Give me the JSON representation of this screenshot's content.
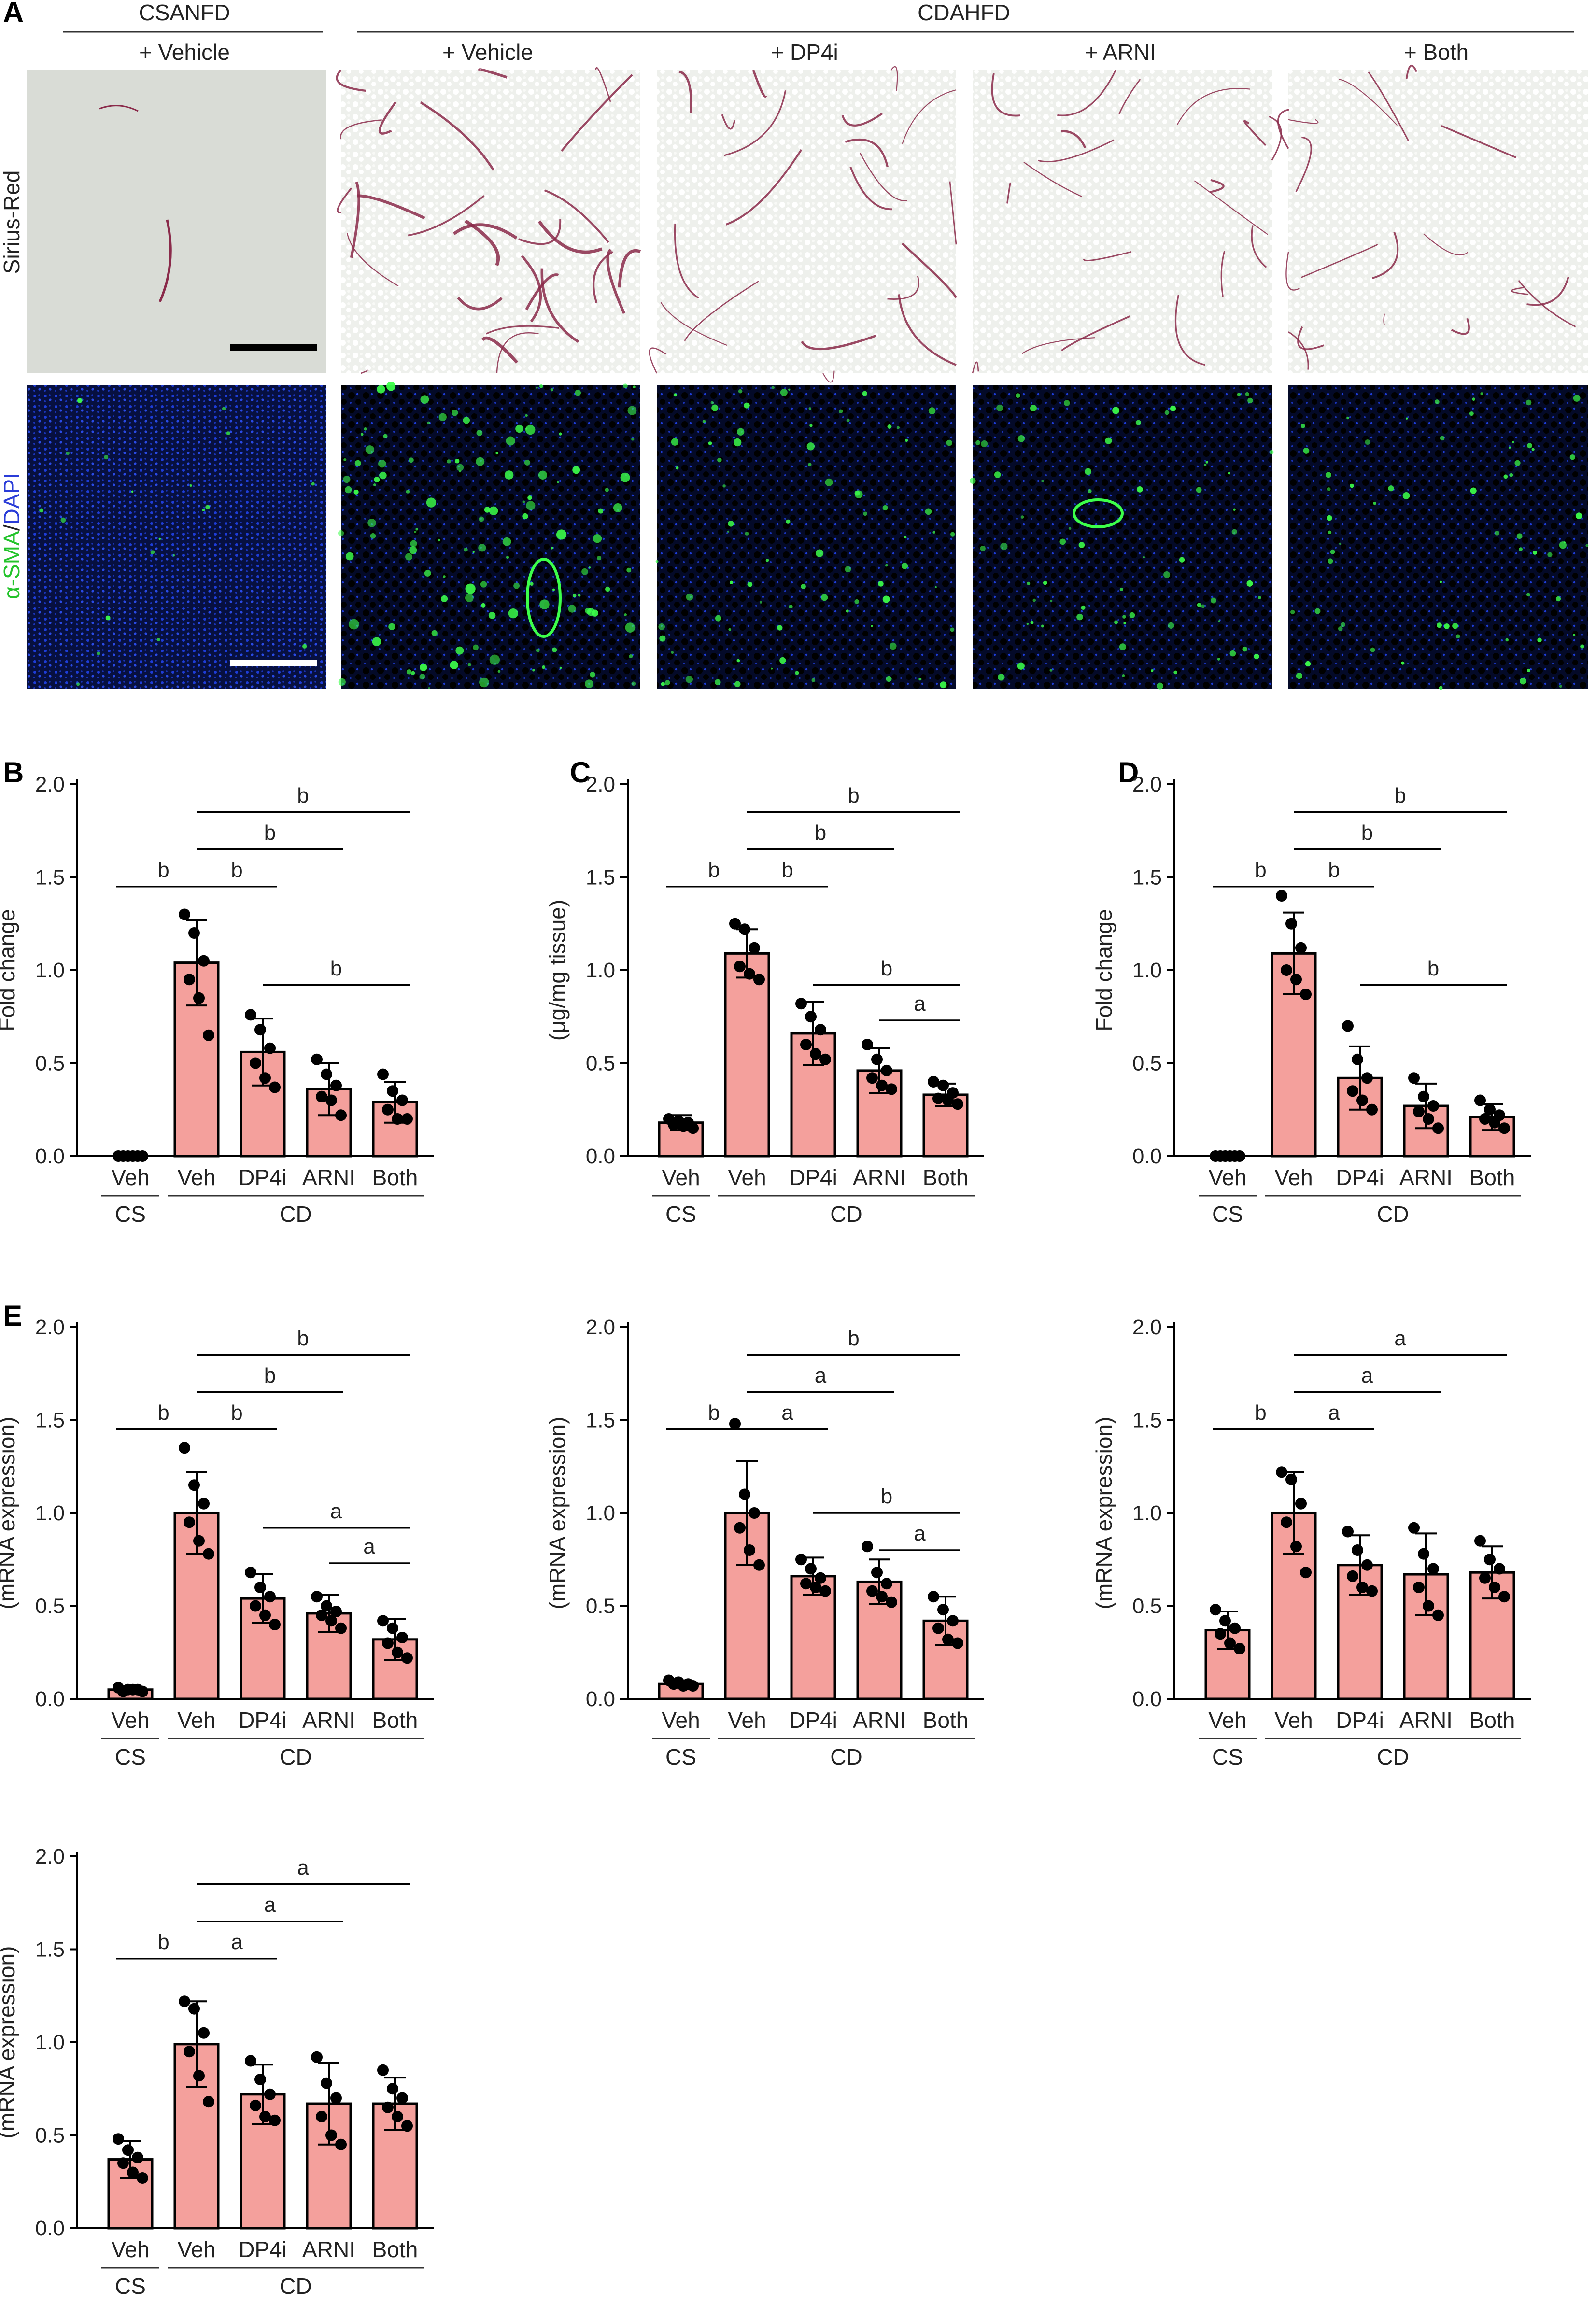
{
  "panel_a": {
    "letter": "A",
    "group_labels": [
      "CSANFD",
      "CDAHFD"
    ],
    "column_labels": [
      "+ Vehicle",
      "+ Vehicle",
      "+ DP4i",
      "+ ARNI",
      "+ Both"
    ],
    "row_labels": [
      "Sirius-Red",
      "α-SMA/DAPI"
    ],
    "row_label_parts": {
      "sma": "α-SMA",
      "sep": "/",
      "dapi": "DAPI"
    },
    "colors": {
      "sirius_bg": "#d9dcd6",
      "sirius_stain": "#8a2a4a",
      "if_bg": "#0b1a5a",
      "if_green": "#3cff4a",
      "scale_white": "#ffffff",
      "scale_black": "#000000"
    }
  },
  "colors": {
    "bar_fill": "#f4a09c",
    "bar_stroke": "#000000",
    "point": "#000000"
  },
  "chart_data": [
    {
      "type": "bar",
      "letter": "B",
      "title": "",
      "xlabel": "",
      "ylabel": "Fold change",
      "ylim": [
        0,
        2.0
      ],
      "yticks": [
        "0.0",
        "0.5",
        "1.0",
        "1.5",
        "2.0"
      ],
      "categories": [
        "Veh",
        "Veh",
        "DP4i",
        "ARNI",
        "Both"
      ],
      "groups": [
        {
          "label": "CS",
          "span": [
            0,
            0
          ]
        },
        {
          "label": "CD",
          "span": [
            1,
            4
          ]
        }
      ],
      "values": [
        0.0,
        1.04,
        0.56,
        0.36,
        0.29
      ],
      "errors": [
        0.0,
        0.23,
        0.18,
        0.14,
        0.11
      ],
      "points": [
        [
          0,
          0,
          0,
          0,
          0,
          0
        ],
        [
          1.3,
          1.2,
          1.05,
          0.95,
          0.85,
          0.65
        ],
        [
          0.76,
          0.68,
          0.58,
          0.5,
          0.42,
          0.37
        ],
        [
          0.52,
          0.44,
          0.38,
          0.32,
          0.3,
          0.22
        ],
        [
          0.44,
          0.35,
          0.3,
          0.25,
          0.2,
          0.2
        ]
      ],
      "annotations": [
        {
          "from": 0,
          "to": 1,
          "level": 1.45,
          "text": "b"
        },
        {
          "from": 1,
          "to": 2,
          "level": 1.45,
          "text": "b"
        },
        {
          "from": 1,
          "to": 3,
          "level": 1.65,
          "text": "b"
        },
        {
          "from": 1,
          "to": 4,
          "level": 1.85,
          "text": "b"
        },
        {
          "from": 2,
          "to": 4,
          "level": 0.92,
          "text": "b"
        }
      ]
    },
    {
      "type": "bar",
      "letter": "C",
      "title": "",
      "xlabel": "",
      "ylabel": "(μg/mg tissue)",
      "ylim": [
        0,
        2.0
      ],
      "yticks": [
        "0.0",
        "0.5",
        "1.0",
        "1.5",
        "2.0"
      ],
      "categories": [
        "Veh",
        "Veh",
        "DP4i",
        "ARNI",
        "Both"
      ],
      "groups": [
        {
          "label": "CS",
          "span": [
            0,
            0
          ]
        },
        {
          "label": "CD",
          "span": [
            1,
            4
          ]
        }
      ],
      "values": [
        0.18,
        1.09,
        0.66,
        0.46,
        0.33
      ],
      "errors": [
        0.04,
        0.13,
        0.17,
        0.12,
        0.06
      ],
      "points": [
        [
          0.2,
          0.19,
          0.18,
          0.17,
          0.16,
          0.15
        ],
        [
          1.25,
          1.22,
          1.12,
          1.02,
          0.98,
          0.95
        ],
        [
          0.82,
          0.75,
          0.68,
          0.6,
          0.55,
          0.52
        ],
        [
          0.6,
          0.52,
          0.46,
          0.42,
          0.38,
          0.36
        ],
        [
          0.4,
          0.38,
          0.34,
          0.31,
          0.3,
          0.28
        ]
      ],
      "annotations": [
        {
          "from": 0,
          "to": 1,
          "level": 1.45,
          "text": "b"
        },
        {
          "from": 1,
          "to": 2,
          "level": 1.45,
          "text": "b"
        },
        {
          "from": 1,
          "to": 3,
          "level": 1.65,
          "text": "b"
        },
        {
          "from": 1,
          "to": 4,
          "level": 1.85,
          "text": "b"
        },
        {
          "from": 2,
          "to": 4,
          "level": 0.92,
          "text": "b"
        },
        {
          "from": 3,
          "to": 4,
          "level": 0.73,
          "text": "a"
        }
      ]
    },
    {
      "type": "bar",
      "letter": "D",
      "title": "",
      "xlabel": "",
      "ylabel": "Fold change",
      "ylim": [
        0,
        2.0
      ],
      "yticks": [
        "0.0",
        "0.5",
        "1.0",
        "1.5",
        "2.0"
      ],
      "categories": [
        "Veh",
        "Veh",
        "DP4i",
        "ARNI",
        "Both"
      ],
      "groups": [
        {
          "label": "CS",
          "span": [
            0,
            0
          ]
        },
        {
          "label": "CD",
          "span": [
            1,
            4
          ]
        }
      ],
      "values": [
        0.0,
        1.09,
        0.42,
        0.27,
        0.21
      ],
      "errors": [
        0.0,
        0.22,
        0.17,
        0.12,
        0.07
      ],
      "points": [
        [
          0,
          0,
          0,
          0,
          0,
          0
        ],
        [
          1.4,
          1.25,
          1.12,
          1.0,
          0.95,
          0.87
        ],
        [
          0.7,
          0.52,
          0.42,
          0.35,
          0.3,
          0.25
        ],
        [
          0.42,
          0.32,
          0.27,
          0.24,
          0.2,
          0.15
        ],
        [
          0.3,
          0.25,
          0.22,
          0.2,
          0.18,
          0.15
        ]
      ],
      "annotations": [
        {
          "from": 0,
          "to": 1,
          "level": 1.45,
          "text": "b"
        },
        {
          "from": 1,
          "to": 2,
          "level": 1.45,
          "text": "b"
        },
        {
          "from": 1,
          "to": 3,
          "level": 1.65,
          "text": "b"
        },
        {
          "from": 1,
          "to": 4,
          "level": 1.85,
          "text": "b"
        },
        {
          "from": 2,
          "to": 4,
          "level": 0.92,
          "text": "b"
        }
      ]
    },
    {
      "type": "bar",
      "letter": "E",
      "title": "",
      "xlabel": "",
      "ylabel": "(mRNA expression)",
      "ylim": [
        0,
        2.0
      ],
      "yticks": [
        "0.0",
        "0.5",
        "1.0",
        "1.5",
        "2.0"
      ],
      "categories": [
        "Veh",
        "Veh",
        "DP4i",
        "ARNI",
        "Both"
      ],
      "groups": [
        {
          "label": "CS",
          "span": [
            0,
            0
          ]
        },
        {
          "label": "CD",
          "span": [
            1,
            4
          ]
        }
      ],
      "values": [
        0.05,
        1.0,
        0.54,
        0.46,
        0.32
      ],
      "errors": [
        0.01,
        0.22,
        0.13,
        0.1,
        0.11
      ],
      "points": [
        [
          0.06,
          0.05,
          0.05,
          0.04,
          0.05,
          0.04
        ],
        [
          1.35,
          1.15,
          1.05,
          0.95,
          0.85,
          0.78
        ],
        [
          0.68,
          0.6,
          0.55,
          0.5,
          0.45,
          0.4
        ],
        [
          0.55,
          0.5,
          0.47,
          0.45,
          0.42,
          0.38
        ],
        [
          0.42,
          0.38,
          0.33,
          0.3,
          0.25,
          0.22
        ]
      ],
      "annotations": [
        {
          "from": 0,
          "to": 1,
          "level": 1.45,
          "text": "b"
        },
        {
          "from": 1,
          "to": 2,
          "level": 1.45,
          "text": "b"
        },
        {
          "from": 1,
          "to": 3,
          "level": 1.65,
          "text": "b"
        },
        {
          "from": 1,
          "to": 4,
          "level": 1.85,
          "text": "b"
        },
        {
          "from": 2,
          "to": 4,
          "level": 0.92,
          "text": "a"
        },
        {
          "from": 3,
          "to": 4,
          "level": 0.73,
          "text": "a"
        }
      ]
    },
    {
      "type": "bar",
      "letter": "",
      "title": "",
      "xlabel": "",
      "ylabel": "(mRNA expression)",
      "ylim": [
        0,
        2.0
      ],
      "yticks": [
        "0.0",
        "0.5",
        "1.0",
        "1.5",
        "2.0"
      ],
      "categories": [
        "Veh",
        "Veh",
        "DP4i",
        "ARNI",
        "Both"
      ],
      "groups": [
        {
          "label": "CS",
          "span": [
            0,
            0
          ]
        },
        {
          "label": "CD",
          "span": [
            1,
            4
          ]
        }
      ],
      "values": [
        0.08,
        1.0,
        0.66,
        0.63,
        0.42
      ],
      "errors": [
        0.02,
        0.28,
        0.1,
        0.12,
        0.13
      ],
      "points": [
        [
          0.1,
          0.09,
          0.08,
          0.08,
          0.07,
          0.07
        ],
        [
          1.48,
          1.1,
          1.0,
          0.92,
          0.8,
          0.72
        ],
        [
          0.75,
          0.7,
          0.65,
          0.62,
          0.6,
          0.58
        ],
        [
          0.82,
          0.68,
          0.62,
          0.58,
          0.55,
          0.52
        ],
        [
          0.55,
          0.48,
          0.42,
          0.38,
          0.32,
          0.3
        ]
      ],
      "annotations": [
        {
          "from": 0,
          "to": 1,
          "level": 1.45,
          "text": "b"
        },
        {
          "from": 1,
          "to": 2,
          "level": 1.45,
          "text": "a"
        },
        {
          "from": 1,
          "to": 3,
          "level": 1.65,
          "text": "a"
        },
        {
          "from": 1,
          "to": 4,
          "level": 1.85,
          "text": "b"
        },
        {
          "from": 2,
          "to": 4,
          "level": 1.0,
          "text": "b"
        },
        {
          "from": 3,
          "to": 4,
          "level": 0.8,
          "text": "a"
        }
      ]
    },
    {
      "type": "bar",
      "letter": "",
      "title": "",
      "xlabel": "",
      "ylabel": "(mRNA expression)",
      "ylim": [
        0,
        2.0
      ],
      "yticks": [
        "0.0",
        "0.5",
        "1.0",
        "1.5",
        "2.0"
      ],
      "categories": [
        "Veh",
        "Veh",
        "DP4i",
        "ARNI",
        "Both"
      ],
      "groups": [
        {
          "label": "CS",
          "span": [
            0,
            0
          ]
        },
        {
          "label": "CD",
          "span": [
            1,
            4
          ]
        }
      ],
      "values": [
        0.37,
        1.0,
        0.72,
        0.67,
        0.68
      ],
      "errors": [
        0.1,
        0.22,
        0.16,
        0.22,
        0.14
      ],
      "points": [
        [
          0.48,
          0.42,
          0.38,
          0.35,
          0.3,
          0.27
        ],
        [
          1.22,
          1.18,
          1.05,
          0.95,
          0.82,
          0.68
        ],
        [
          0.9,
          0.8,
          0.72,
          0.66,
          0.6,
          0.58
        ],
        [
          0.92,
          0.78,
          0.7,
          0.6,
          0.5,
          0.45
        ],
        [
          0.85,
          0.75,
          0.7,
          0.65,
          0.6,
          0.55
        ]
      ],
      "annotations": [
        {
          "from": 0,
          "to": 1,
          "level": 1.45,
          "text": "b"
        },
        {
          "from": 1,
          "to": 2,
          "level": 1.45,
          "text": "a"
        },
        {
          "from": 1,
          "to": 3,
          "level": 1.65,
          "text": "a"
        },
        {
          "from": 1,
          "to": 4,
          "level": 1.85,
          "text": "a"
        }
      ]
    },
    {
      "type": "bar",
      "letter": "",
      "title": "",
      "xlabel": "",
      "ylabel": "(mRNA expression)",
      "ylim": [
        0,
        2.0
      ],
      "yticks": [
        "0.0",
        "0.5",
        "1.0",
        "1.5",
        "2.0"
      ],
      "categories": [
        "Veh",
        "Veh",
        "DP4i",
        "ARNI",
        "Both"
      ],
      "groups": [
        {
          "label": "CS",
          "span": [
            0,
            0
          ]
        },
        {
          "label": "CD",
          "span": [
            1,
            4
          ]
        }
      ],
      "values": [
        0.37,
        0.99,
        0.72,
        0.67,
        0.67
      ],
      "errors": [
        0.1,
        0.23,
        0.16,
        0.22,
        0.14
      ],
      "points": [
        [
          0.48,
          0.42,
          0.38,
          0.35,
          0.3,
          0.27
        ],
        [
          1.22,
          1.18,
          1.05,
          0.95,
          0.82,
          0.68
        ],
        [
          0.9,
          0.8,
          0.72,
          0.66,
          0.6,
          0.58
        ],
        [
          0.92,
          0.78,
          0.7,
          0.6,
          0.5,
          0.45
        ],
        [
          0.85,
          0.75,
          0.7,
          0.65,
          0.6,
          0.55
        ]
      ],
      "annotations": [
        {
          "from": 0,
          "to": 1,
          "level": 1.45,
          "text": "b"
        },
        {
          "from": 1,
          "to": 2,
          "level": 1.45,
          "text": "a"
        },
        {
          "from": 1,
          "to": 3,
          "level": 1.65,
          "text": "a"
        },
        {
          "from": 1,
          "to": 4,
          "level": 1.85,
          "text": "a"
        }
      ]
    }
  ]
}
